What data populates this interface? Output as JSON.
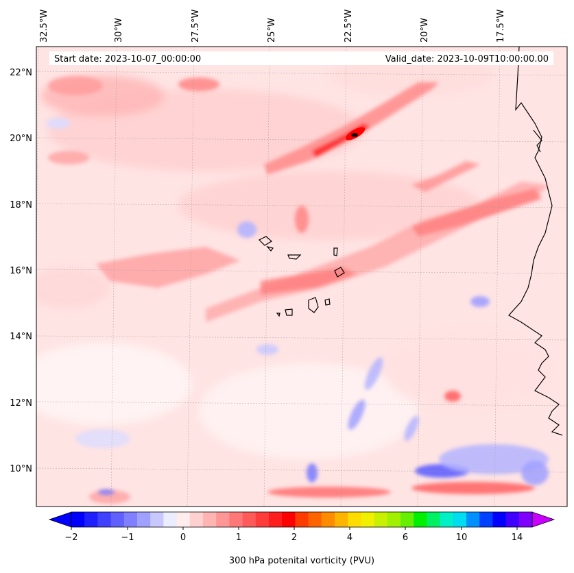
{
  "header": {
    "start_date": "Start date: 2023-10-07_00:00:00",
    "valid_date": "Valid_date: 2023-10-09T10:00:00.00"
  },
  "map": {
    "lon_labels": [
      "32.5°W",
      "30°W",
      "27.5°W",
      "25°W",
      "22.5°W",
      "20°W",
      "17.5°W"
    ],
    "lat_labels": [
      "22°N",
      "20°N",
      "18°N",
      "16°N",
      "14°N",
      "12°N",
      "10°N"
    ],
    "field": "300 hPa potential vorticity",
    "colormap": "bwr-jet"
  },
  "colorbar": {
    "tick_labels": [
      "−2",
      "−1",
      "0",
      "1",
      "2",
      "4",
      "6",
      "10",
      "14"
    ],
    "label": "300 hPa potenital vorticity (PVU)",
    "colors": [
      "#0000ff",
      "#2020ff",
      "#4040ff",
      "#6060ff",
      "#8080ff",
      "#a0a0ff",
      "#c8c8ff",
      "#ececff",
      "#ffecec",
      "#ffd0d0",
      "#ffb4b4",
      "#ff9696",
      "#ff7878",
      "#ff5a5a",
      "#ff3c3c",
      "#ff1e1e",
      "#ff0000",
      "#ff3c00",
      "#ff6400",
      "#ff8c00",
      "#ffb400",
      "#ffdc00",
      "#f0f000",
      "#c8f000",
      "#a0f000",
      "#64f000",
      "#00f000",
      "#00f064",
      "#00f0c8",
      "#00dcf0",
      "#0090ff",
      "#0040ff",
      "#0000ff",
      "#4000ff",
      "#8000ff"
    ]
  }
}
